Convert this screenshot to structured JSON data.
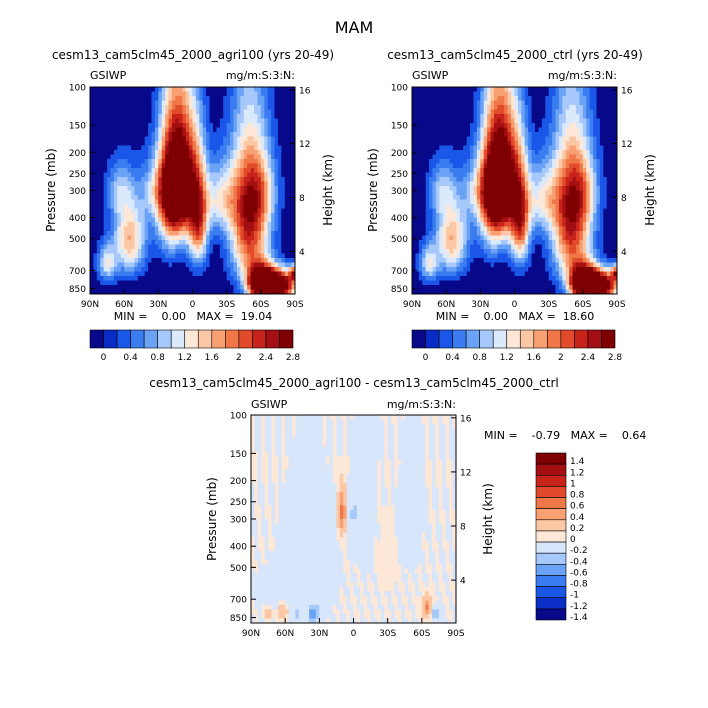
{
  "page": {
    "season_title": "MAM"
  },
  "palettes": {
    "abs": [
      "#08088a",
      "#0a2cc6",
      "#1a56e8",
      "#3b7df0",
      "#6aa3f5",
      "#a6c8fa",
      "#dbe9fd",
      "#fde7d6",
      "#fcc7a4",
      "#f8a072",
      "#f07748",
      "#e14a2a",
      "#c8231a",
      "#a40f13",
      "#7f0000"
    ],
    "diff": [
      "#08088a",
      "#0c2fc8",
      "#1b55e6",
      "#3b7df0",
      "#6aa3f5",
      "#a6c8fa",
      "#d8e6fb",
      "#fde7d6",
      "#fcc7a4",
      "#f8a072",
      "#f07748",
      "#e14a2a",
      "#c8231a",
      "#a40f13",
      "#7f0000"
    ]
  },
  "chart_data": [
    {
      "type": "heatmap",
      "id": "agri100",
      "title": "cesm13_cam5clm45_2000_agri100 (yrs 20-49)",
      "left_label": "GSIWP",
      "right_label": "mg/m:S:3:N:",
      "xlabel": "",
      "ylabel": "Pressure (mb)",
      "ylabel2": "Height (km)",
      "x_ticks": [
        "90N",
        "60N",
        "30N",
        "0",
        "30S",
        "60S",
        "90S"
      ],
      "y_ticks": [
        "100",
        "150",
        "200",
        "250",
        "300",
        "400",
        "500",
        "700",
        "850"
      ],
      "y2_ticks": [
        "16",
        "12",
        "8",
        "4"
      ],
      "xlim": [
        90,
        -90
      ],
      "ylim": [
        100,
        900
      ],
      "stats": "MIN =    0.00   MAX =  19.04",
      "colorbar_labels": [
        "0",
        "0.4",
        "0.8",
        "1.2",
        "1.6",
        "2",
        "2.4",
        "2.8"
      ],
      "blobs": [
        {
          "lat": -75,
          "p": 820,
          "sx": 11,
          "sy": 90,
          "a": 3.6
        },
        {
          "lat": -50,
          "p": 420,
          "sx": 12,
          "sy": 220,
          "a": 2.4
        },
        {
          "lat": -60,
          "p": 300,
          "sx": 10,
          "sy": 80,
          "a": 0.8
        },
        {
          "lat": 10,
          "p": 270,
          "sx": 10,
          "sy": 130,
          "a": 3.2
        },
        {
          "lat": -5,
          "p": 420,
          "sx": 6,
          "sy": 150,
          "a": 2.0
        },
        {
          "lat": 20,
          "p": 330,
          "sx": 8,
          "sy": 160,
          "a": 1.5
        },
        {
          "lat": -25,
          "p": 330,
          "sx": 12,
          "sy": 80,
          "a": 1.1
        },
        {
          "lat": 30,
          "p": 300,
          "sx": 10,
          "sy": 70,
          "a": 1.0
        },
        {
          "lat": -60,
          "p": 800,
          "sx": 8,
          "sy": 100,
          "a": 3.4
        },
        {
          "lat": 55,
          "p": 500,
          "sx": 10,
          "sy": 140,
          "a": 1.6
        },
        {
          "lat": 65,
          "p": 300,
          "sx": 8,
          "sy": 60,
          "a": 0.7
        },
        {
          "lat": 75,
          "p": 650,
          "sx": 6,
          "sy": 90,
          "a": 1.1
        },
        {
          "lat": -88,
          "p": 720,
          "sx": 2,
          "sy": 40,
          "a": 1.8
        }
      ]
    },
    {
      "type": "heatmap",
      "id": "ctrl",
      "title": "cesm13_cam5clm45_2000_ctrl (yrs 20-49)",
      "left_label": "GSIWP",
      "right_label": "mg/m:S:3:N:",
      "xlabel": "",
      "ylabel": "Pressure (mb)",
      "ylabel2": "Height (km)",
      "x_ticks": [
        "90N",
        "60N",
        "30N",
        "0",
        "30S",
        "60S",
        "90S"
      ],
      "y_ticks": [
        "100",
        "150",
        "200",
        "250",
        "300",
        "400",
        "500",
        "700",
        "850"
      ],
      "y2_ticks": [
        "16",
        "12",
        "8",
        "4"
      ],
      "xlim": [
        90,
        -90
      ],
      "ylim": [
        100,
        900
      ],
      "stats": "MIN =    0.00   MAX =  18.60",
      "colorbar_labels": [
        "0",
        "0.4",
        "0.8",
        "1.2",
        "1.6",
        "2",
        "2.4",
        "2.8"
      ],
      "blobs": [
        {
          "lat": -75,
          "p": 820,
          "sx": 11,
          "sy": 90,
          "a": 3.5
        },
        {
          "lat": -50,
          "p": 420,
          "sx": 12,
          "sy": 220,
          "a": 2.4
        },
        {
          "lat": -60,
          "p": 300,
          "sx": 10,
          "sy": 80,
          "a": 0.8
        },
        {
          "lat": 10,
          "p": 270,
          "sx": 10,
          "sy": 130,
          "a": 3.2
        },
        {
          "lat": -5,
          "p": 420,
          "sx": 6,
          "sy": 150,
          "a": 2.0
        },
        {
          "lat": 20,
          "p": 330,
          "sx": 8,
          "sy": 160,
          "a": 1.5
        },
        {
          "lat": -25,
          "p": 330,
          "sx": 12,
          "sy": 80,
          "a": 1.1
        },
        {
          "lat": 30,
          "p": 300,
          "sx": 10,
          "sy": 70,
          "a": 1.0
        },
        {
          "lat": -60,
          "p": 800,
          "sx": 8,
          "sy": 100,
          "a": 3.4
        },
        {
          "lat": 55,
          "p": 500,
          "sx": 10,
          "sy": 140,
          "a": 1.6
        },
        {
          "lat": 65,
          "p": 300,
          "sx": 8,
          "sy": 60,
          "a": 0.7
        },
        {
          "lat": 75,
          "p": 650,
          "sx": 6,
          "sy": 90,
          "a": 1.1
        },
        {
          "lat": -88,
          "p": 720,
          "sx": 2,
          "sy": 40,
          "a": 1.8
        }
      ]
    },
    {
      "type": "heatmap",
      "id": "diff",
      "title": "cesm13_cam5clm45_2000_agri100 - cesm13_cam5clm45_2000_ctrl",
      "left_label": "GSIWP",
      "right_label": "mg/m:S:3:N:",
      "xlabel": "",
      "ylabel": "Pressure (mb)",
      "ylabel2": "Height (km)",
      "x_ticks": [
        "90N",
        "60N",
        "30N",
        "0",
        "30S",
        "60S",
        "90S"
      ],
      "y_ticks": [
        "100",
        "150",
        "200",
        "250",
        "300",
        "400",
        "500",
        "700",
        "850"
      ],
      "y2_ticks": [
        "16",
        "12",
        "8",
        "4"
      ],
      "xlim": [
        90,
        -90
      ],
      "ylim": [
        100,
        900
      ],
      "stats": "MIN =    -0.79   MAX =    0.64",
      "colorbar_labels": [
        "1.4",
        "1.2",
        "1",
        "0.8",
        "0.6",
        "0.4",
        "0.2",
        "0",
        "-0.2",
        "-0.4",
        "-0.6",
        "-0.8",
        "-1",
        "-1.2",
        "-1.4"
      ],
      "blobs": [
        {
          "lat": 10,
          "p": 280,
          "sx": 2.5,
          "sy": 50,
          "a": 0.55
        },
        {
          "lat": 0,
          "p": 280,
          "sx": 2.5,
          "sy": 55,
          "a": -0.35
        },
        {
          "lat": -65,
          "p": 770,
          "sx": 3,
          "sy": 60,
          "a": 0.55
        },
        {
          "lat": -72,
          "p": 820,
          "sx": 3,
          "sy": 50,
          "a": -0.55
        },
        {
          "lat": 35,
          "p": 820,
          "sx": 4,
          "sy": 60,
          "a": -0.65
        },
        {
          "lat": 62,
          "p": 800,
          "sx": 3,
          "sy": 50,
          "a": 0.3
        },
        {
          "lat": 75,
          "p": 820,
          "sx": 2.5,
          "sy": 40,
          "a": 0.25
        },
        {
          "lat": 50,
          "p": 820,
          "sx": 3,
          "sy": 50,
          "a": -0.3
        },
        {
          "lat": 40,
          "p": 500,
          "sx": 15,
          "sy": 200,
          "a": -0.12
        },
        {
          "lat": -10,
          "p": 250,
          "sx": 6,
          "sy": 150,
          "a": -0.1
        },
        {
          "lat": -30,
          "p": 450,
          "sx": 6,
          "sy": 120,
          "a": 0.06
        },
        {
          "lat": -50,
          "p": 300,
          "sx": 6,
          "sy": 120,
          "a": -0.1
        },
        {
          "lat": 70,
          "p": 650,
          "sx": 10,
          "sy": 80,
          "a": -0.12
        }
      ]
    }
  ]
}
